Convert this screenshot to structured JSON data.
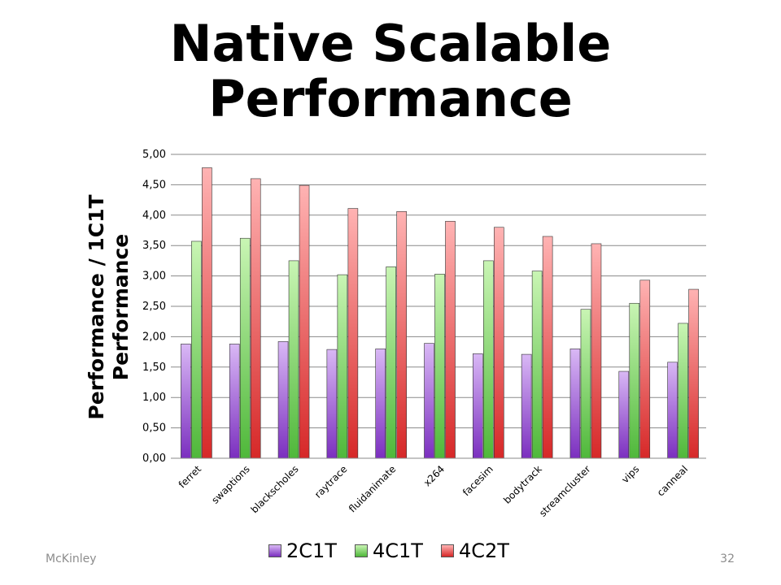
{
  "slide": {
    "title_line1": "Native Scalable",
    "title_line2": "Performance",
    "footer_left": "McKinley",
    "page_number": "32"
  },
  "chart_data": {
    "type": "bar",
    "title": "",
    "ylabel_line1": "Performance / 1C1T",
    "ylabel_line2": "Performance",
    "xlabel": "",
    "ylim": [
      0,
      5
    ],
    "ytick_step": 0.5,
    "ytick_labels": [
      "0,00",
      "0,50",
      "1,00",
      "1,50",
      "2,00",
      "2,50",
      "3,00",
      "3,50",
      "4,00",
      "4,50",
      "5,00"
    ],
    "grid": true,
    "legend_position": "bottom",
    "categories": [
      "ferret",
      "swaptions",
      "blackscholes",
      "raytrace",
      "fluidanimate",
      "x264",
      "facesim",
      "bodytrack",
      "streamcluster",
      "vips",
      "canneal"
    ],
    "series": [
      {
        "name": "2C1T",
        "color": "#7b2fbf",
        "values": [
          1.88,
          1.88,
          1.92,
          1.79,
          1.8,
          1.89,
          1.72,
          1.71,
          1.8,
          1.43,
          1.58
        ]
      },
      {
        "name": "4C1T",
        "color": "#4fb83a",
        "values": [
          3.57,
          3.62,
          3.25,
          3.02,
          3.15,
          3.03,
          3.25,
          3.08,
          2.45,
          2.55,
          2.22
        ]
      },
      {
        "name": "4C2T",
        "color": "#d62828",
        "values": [
          4.78,
          4.6,
          4.49,
          4.11,
          4.06,
          3.9,
          3.8,
          3.65,
          3.53,
          2.93,
          2.78
        ]
      }
    ]
  }
}
